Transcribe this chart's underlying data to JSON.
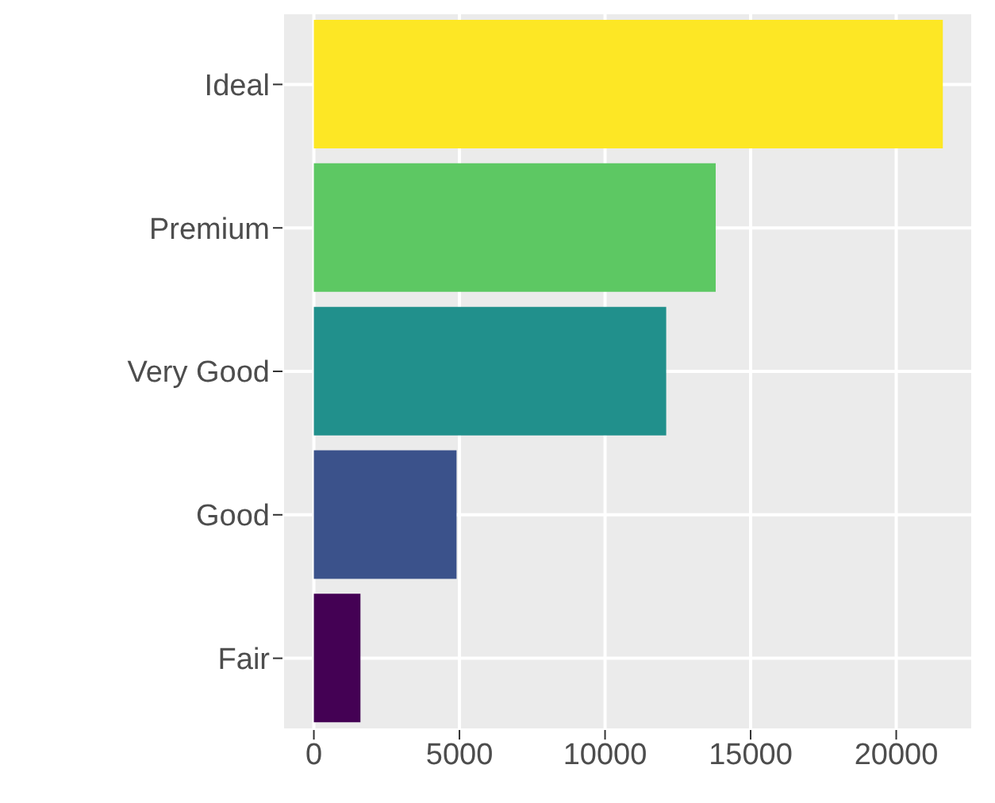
{
  "chart_data": {
    "type": "bar",
    "orientation": "horizontal",
    "categories": [
      "Ideal",
      "Premium",
      "Very Good",
      "Good",
      "Fair"
    ],
    "values": [
      21600,
      13800,
      12100,
      4900,
      1600
    ],
    "colors": [
      "#fde725",
      "#5dc863",
      "#21908c",
      "#3b528b",
      "#440154"
    ],
    "xlim": [
      -1078,
      22629
    ],
    "xticks": [
      0,
      5000,
      10000,
      15000,
      20000
    ],
    "grid": true
  }
}
